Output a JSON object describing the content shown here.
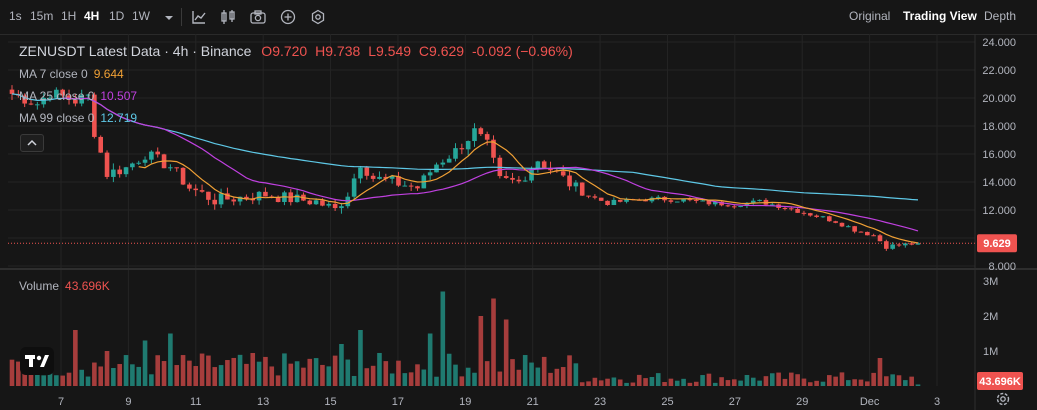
{
  "toolbar": {
    "intervals": [
      "1s",
      "15m",
      "1H",
      "4H",
      "1D",
      "1W"
    ],
    "active_interval": "4H",
    "views": [
      "Original",
      "Trading View",
      "Depth"
    ],
    "active_view": "Trading View"
  },
  "legend": {
    "title": "ZENUSDT Latest Data · 4h · Binance",
    "ohlc": [
      {
        "k": "O",
        "v": "9.720"
      },
      {
        "k": "H",
        "v": "9.738"
      },
      {
        "k": "L",
        "v": "9.549"
      },
      {
        "k": "C",
        "v": "9.629"
      }
    ],
    "change": "-0.092 (−0.96%)",
    "ma": [
      {
        "label": "MA 7 close 0",
        "value": "9.644",
        "color": "#f0a035"
      },
      {
        "label": "MA 25 close 0",
        "value": "10.507",
        "color": "#c040e0"
      },
      {
        "label": "MA 99 close 0",
        "value": "12.719",
        "color": "#5ec8e6"
      }
    ],
    "volume_label": "Volume",
    "volume_value": "43.696K"
  },
  "price_badge": "9.629",
  "volume_badge": "43.696K",
  "colors": {
    "up": "#26a69a",
    "down": "#ef5350",
    "bg": "#161616",
    "grid": "#242424",
    "text": "#b2b5be"
  },
  "chart_data": {
    "type": "candlestick",
    "symbol": "ZENUSDT",
    "interval": "4h",
    "exchange": "Binance",
    "price_axis": {
      "ticks": [
        8,
        10,
        12,
        14,
        16,
        18,
        20,
        22,
        24
      ],
      "tick_labels": [
        "8.000",
        "10.000",
        "12.000",
        "14.000",
        "16.000",
        "18.000",
        "20.000",
        "22.000",
        "24.000"
      ],
      "range": [
        8,
        24
      ]
    },
    "volume_axis": {
      "ticks": [
        1000000,
        2000000,
        3000000
      ],
      "tick_labels": [
        "1M",
        "2M",
        "3M"
      ],
      "range": [
        0,
        3000000
      ]
    },
    "x_axis": {
      "tick_labels": [
        "7",
        "9",
        "11",
        "13",
        "15",
        "17",
        "19",
        "21",
        "23",
        "25",
        "27",
        "29",
        "Dec",
        "3"
      ]
    },
    "last_price": 9.629,
    "last_volume": 43696,
    "price_knots": [
      {
        "t": 0,
        "p": 20.3
      },
      {
        "t": 4,
        "p": 19.6
      },
      {
        "t": 6,
        "p": 20.4
      },
      {
        "t": 10,
        "p": 19.8
      },
      {
        "t": 12,
        "p": 20.1
      },
      {
        "t": 13,
        "p": 17.6
      },
      {
        "t": 15,
        "p": 14.6
      },
      {
        "t": 18,
        "p": 15.0
      },
      {
        "t": 21,
        "p": 16.0
      },
      {
        "t": 25,
        "p": 15.1
      },
      {
        "t": 28,
        "p": 13.6
      },
      {
        "t": 32,
        "p": 12.7
      },
      {
        "t": 36,
        "p": 12.9
      },
      {
        "t": 40,
        "p": 13.1
      },
      {
        "t": 44,
        "p": 12.8
      },
      {
        "t": 48,
        "p": 12.6
      },
      {
        "t": 51,
        "p": 12.0
      },
      {
        "t": 53,
        "p": 13.2
      },
      {
        "t": 55,
        "p": 15.4
      },
      {
        "t": 57,
        "p": 14.3
      },
      {
        "t": 60,
        "p": 14.0
      },
      {
        "t": 64,
        "p": 13.6
      },
      {
        "t": 67,
        "p": 15.3
      },
      {
        "t": 70,
        "p": 16.2
      },
      {
        "t": 73,
        "p": 17.6
      },
      {
        "t": 75,
        "p": 16.6
      },
      {
        "t": 77,
        "p": 14.1
      },
      {
        "t": 80,
        "p": 14.0
      },
      {
        "t": 83,
        "p": 15.6
      },
      {
        "t": 86,
        "p": 14.6
      },
      {
        "t": 90,
        "p": 13.2
      },
      {
        "t": 94,
        "p": 12.5
      },
      {
        "t": 98,
        "p": 12.7
      },
      {
        "t": 102,
        "p": 12.8
      },
      {
        "t": 106,
        "p": 12.7
      },
      {
        "t": 110,
        "p": 12.5
      },
      {
        "t": 114,
        "p": 12.4
      },
      {
        "t": 118,
        "p": 12.6
      },
      {
        "t": 122,
        "p": 12.2
      },
      {
        "t": 126,
        "p": 11.7
      },
      {
        "t": 130,
        "p": 11.2
      },
      {
        "t": 133,
        "p": 10.6
      },
      {
        "t": 136,
        "p": 10.2
      },
      {
        "t": 138,
        "p": 9.4
      },
      {
        "t": 143,
        "p": 9.63
      }
    ],
    "ma_series": [
      {
        "name": "MA 7",
        "last": 9.644
      },
      {
        "name": "MA 25",
        "last": 10.507
      },
      {
        "name": "MA 99",
        "last": 12.719
      }
    ],
    "volume_spikes": [
      {
        "t": 4,
        "v": 1100000
      },
      {
        "t": 10,
        "v": 1600000
      },
      {
        "t": 15,
        "v": 1000000
      },
      {
        "t": 21,
        "v": 1300000
      },
      {
        "t": 25,
        "v": 1500000
      },
      {
        "t": 52,
        "v": 1200000
      },
      {
        "t": 55,
        "v": 1600000
      },
      {
        "t": 66,
        "v": 1500000
      },
      {
        "t": 68,
        "v": 2700000
      },
      {
        "t": 74,
        "v": 2000000
      },
      {
        "t": 76,
        "v": 2500000
      },
      {
        "t": 78,
        "v": 1900000
      },
      {
        "t": 137,
        "v": 800000
      }
    ]
  }
}
